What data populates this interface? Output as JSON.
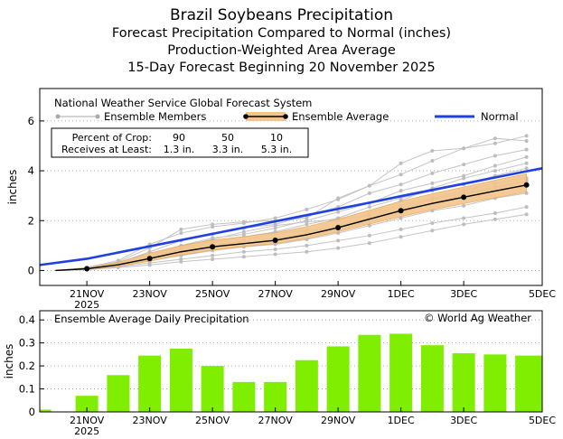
{
  "titles": {
    "main": "Brazil Soybeans Precipitation",
    "line2": "Forecast Precipitation Compared to Normal (inches)",
    "line3": "Production-Weighted Area Average",
    "line4": "15-Day Forecast Beginning 20 November 2025"
  },
  "chart_data": [
    {
      "type": "line",
      "title": "National Weather Service Global Forecast System",
      "ylabel": "inches",
      "ylim": [
        -0.6,
        7.3
      ],
      "yticks": [
        0,
        2,
        4,
        6
      ],
      "grid": "dotted horizontal",
      "x": [
        "2025-11-20",
        "2025-11-21",
        "2025-11-22",
        "2025-11-23",
        "2025-11-24",
        "2025-11-25",
        "2025-11-26",
        "2025-11-27",
        "2025-11-28",
        "2025-11-29",
        "2025-11-30",
        "2025-12-01",
        "2025-12-02",
        "2025-12-03",
        "2025-12-04",
        "2025-12-05"
      ],
      "xtick_labels": [
        "21NOV",
        "23NOV",
        "25NOV",
        "27NOV",
        "29NOV",
        "1DEC",
        "3DEC",
        "5DEC"
      ],
      "xtick_sublabel": "2025",
      "legend": {
        "members_label": "Ensemble Members",
        "average_label": "Ensemble Average",
        "normal_label": "Normal"
      },
      "percent_table": {
        "row1_label": "Percent of Crop:",
        "row2_label": "Receives at Least:",
        "percents": [
          "90",
          "50",
          "10"
        ],
        "amounts": [
          "1.3 in.",
          "3.3 in.",
          "5.3 in."
        ]
      },
      "series": [
        {
          "name": "Ensemble Average",
          "color": "#000000",
          "values": [
            0.0,
            0.07,
            0.23,
            0.48,
            0.75,
            0.95,
            1.08,
            1.21,
            1.43,
            1.72,
            2.06,
            2.4,
            2.69,
            2.94,
            3.19,
            3.43
          ]
        },
        {
          "name": "Normal",
          "color": "#2040e0",
          "values": [
            0.22,
            0.47,
            0.72,
            0.97,
            1.22,
            1.47,
            1.72,
            1.97,
            2.22,
            2.47,
            2.72,
            2.98,
            3.23,
            3.48,
            3.73,
            3.98
          ]
        }
      ],
      "band_low": [
        0.0,
        0.05,
        0.17,
        0.37,
        0.62,
        0.82,
        0.96,
        1.08,
        1.28,
        1.55,
        1.86,
        2.16,
        2.44,
        2.68,
        2.92,
        3.15
      ],
      "band_high": [
        0.0,
        0.1,
        0.33,
        0.7,
        1.0,
        1.22,
        1.36,
        1.52,
        1.76,
        2.06,
        2.42,
        2.78,
        3.08,
        3.35,
        3.62,
        3.88
      ],
      "ensemble_members": [
        [
          0.0,
          0.1,
          0.35,
          0.9,
          1.65,
          1.85,
          1.95,
          2.0,
          2.1,
          2.9,
          3.4,
          4.3,
          4.8,
          4.9,
          5.1,
          5.4
        ],
        [
          0.0,
          0.12,
          0.4,
          1.05,
          1.5,
          1.75,
          1.9,
          2.1,
          2.45,
          2.85,
          3.4,
          3.85,
          4.4,
          4.9,
          5.3,
          5.2
        ],
        [
          0.0,
          0.1,
          0.3,
          0.75,
          1.2,
          1.45,
          1.7,
          1.85,
          2.2,
          2.55,
          3.1,
          3.45,
          3.9,
          4.25,
          4.6,
          4.85
        ],
        [
          0.0,
          0.08,
          0.25,
          0.65,
          1.0,
          1.3,
          1.45,
          1.7,
          2.0,
          2.35,
          2.7,
          3.2,
          3.5,
          3.8,
          4.2,
          4.55
        ],
        [
          0.0,
          0.07,
          0.22,
          0.55,
          0.9,
          1.15,
          1.35,
          1.55,
          1.85,
          2.1,
          2.55,
          2.9,
          3.2,
          3.45,
          3.8,
          4.1
        ],
        [
          0.0,
          0.06,
          0.2,
          0.45,
          0.75,
          0.95,
          1.1,
          1.25,
          1.5,
          1.8,
          2.1,
          2.5,
          2.85,
          3.1,
          3.35,
          3.6
        ],
        [
          0.0,
          0.05,
          0.18,
          0.4,
          0.6,
          0.8,
          0.95,
          1.05,
          1.25,
          1.5,
          1.8,
          2.1,
          2.4,
          2.6,
          2.9,
          3.1
        ],
        [
          0.0,
          0.04,
          0.15,
          0.3,
          0.45,
          0.6,
          0.75,
          0.85,
          1.0,
          1.2,
          1.4,
          1.65,
          1.9,
          2.1,
          2.3,
          2.55
        ],
        [
          0.0,
          0.03,
          0.12,
          0.22,
          0.35,
          0.45,
          0.55,
          0.65,
          0.75,
          0.9,
          1.1,
          1.35,
          1.6,
          1.85,
          2.05,
          2.25
        ],
        [
          0.0,
          0.05,
          0.18,
          0.38,
          0.7,
          0.9,
          1.2,
          1.5,
          1.6,
          1.7,
          2.3,
          2.8,
          3.3,
          3.7,
          4.0,
          4.3
        ],
        [
          0.0,
          0.06,
          0.22,
          0.5,
          0.85,
          1.05,
          1.15,
          1.3,
          1.45,
          1.65,
          1.95,
          2.3,
          2.7,
          3.05,
          3.3,
          3.6
        ],
        [
          0.0,
          0.09,
          0.3,
          0.6,
          0.95,
          1.25,
          1.55,
          1.8,
          1.95,
          2.05,
          2.2,
          2.6,
          2.9,
          3.2,
          3.5,
          3.7
        ]
      ]
    },
    {
      "type": "bar",
      "title": "Ensemble Average Daily Precipitation",
      "credit": "© World Ag Weather",
      "ylabel": "inches",
      "ylim": [
        0,
        0.44
      ],
      "yticks": [
        "0",
        "0.1",
        "0.2",
        "0.3",
        "0.4"
      ],
      "grid": "dotted horizontal",
      "color": "#7fee00",
      "categories": [
        "2025-11-20",
        "2025-11-21",
        "2025-11-22",
        "2025-11-23",
        "2025-11-24",
        "2025-11-25",
        "2025-11-26",
        "2025-11-27",
        "2025-11-28",
        "2025-11-29",
        "2025-11-30",
        "2025-12-01",
        "2025-12-02",
        "2025-12-03",
        "2025-12-04",
        "2025-12-05"
      ],
      "values": [
        0.01,
        0.07,
        0.16,
        0.245,
        0.275,
        0.2,
        0.13,
        0.13,
        0.225,
        0.285,
        0.335,
        0.34,
        0.29,
        0.255,
        0.25,
        0.245
      ]
    }
  ]
}
